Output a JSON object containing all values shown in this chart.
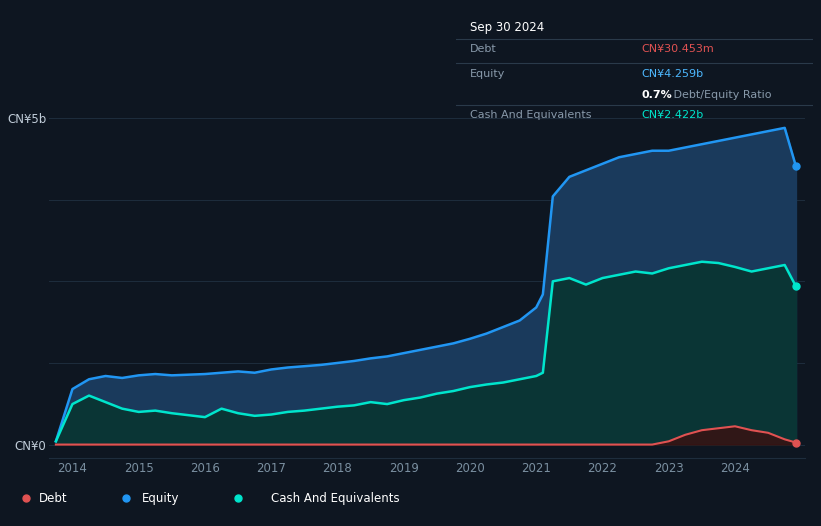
{
  "bg_color": "#0e1621",
  "plot_bg_color": "#0e1621",
  "grid_color": "#1e2d3d",
  "title_box_bg": "#060a0f",
  "title_date": "Sep 30 2024",
  "tooltip_debt_label": "Debt",
  "tooltip_debt_value": "CN¥30.453m",
  "tooltip_debt_color": "#e05252",
  "tooltip_equity_label": "Equity",
  "tooltip_equity_value": "CN¥4.259b",
  "tooltip_equity_color": "#4db8ff",
  "tooltip_ratio": "0.7%",
  "tooltip_ratio_label": " Debt/Equity Ratio",
  "tooltip_cash_label": "Cash And Equivalents",
  "tooltip_cash_value": "CN¥2.422b",
  "tooltip_cash_color": "#00e5cc",
  "ylabel_top": "CN¥5b",
  "ylabel_bottom": "CN¥0",
  "equity_color": "#2196f3",
  "equity_fill_color": "#1a3a5c",
  "cash_color": "#00e5cc",
  "cash_fill_color": "#0a3535",
  "debt_color": "#e05252",
  "debt_fill_color": "#3a1010",
  "legend_debt_label": "Debt",
  "legend_equity_label": "Equity",
  "legend_cash_label": "Cash And Equivalents",
  "xlim_start": 2013.65,
  "xlim_end": 2025.05,
  "ylim_bottom": -0.2,
  "ylim_top": 5.6,
  "years": [
    2013.75,
    2014.0,
    2014.25,
    2014.5,
    2014.75,
    2015.0,
    2015.25,
    2015.5,
    2015.75,
    2016.0,
    2016.25,
    2016.5,
    2016.75,
    2017.0,
    2017.25,
    2017.5,
    2017.75,
    2018.0,
    2018.25,
    2018.5,
    2018.75,
    2019.0,
    2019.25,
    2019.5,
    2019.75,
    2020.0,
    2020.25,
    2020.5,
    2020.75,
    2021.0,
    2021.1,
    2021.25,
    2021.5,
    2021.75,
    2022.0,
    2022.25,
    2022.5,
    2022.75,
    2023.0,
    2023.25,
    2023.5,
    2023.75,
    2024.0,
    2024.25,
    2024.5,
    2024.75,
    2024.92
  ],
  "equity_values": [
    0.05,
    0.85,
    1.0,
    1.05,
    1.02,
    1.06,
    1.08,
    1.06,
    1.07,
    1.08,
    1.1,
    1.12,
    1.1,
    1.15,
    1.18,
    1.2,
    1.22,
    1.25,
    1.28,
    1.32,
    1.35,
    1.4,
    1.45,
    1.5,
    1.55,
    1.62,
    1.7,
    1.8,
    1.9,
    2.1,
    2.3,
    3.8,
    4.1,
    4.2,
    4.3,
    4.4,
    4.45,
    4.5,
    4.5,
    4.55,
    4.6,
    4.65,
    4.7,
    4.75,
    4.8,
    4.85,
    4.259
  ],
  "cash_values": [
    0.05,
    0.62,
    0.75,
    0.65,
    0.55,
    0.5,
    0.52,
    0.48,
    0.45,
    0.42,
    0.55,
    0.48,
    0.44,
    0.46,
    0.5,
    0.52,
    0.55,
    0.58,
    0.6,
    0.65,
    0.62,
    0.68,
    0.72,
    0.78,
    0.82,
    0.88,
    0.92,
    0.95,
    1.0,
    1.05,
    1.1,
    2.5,
    2.55,
    2.45,
    2.55,
    2.6,
    2.65,
    2.62,
    2.7,
    2.75,
    2.8,
    2.78,
    2.72,
    2.65,
    2.7,
    2.75,
    2.422
  ],
  "debt_values": [
    0.0,
    0.0,
    0.0,
    0.0,
    0.0,
    0.0,
    0.0,
    0.0,
    0.0,
    0.0,
    0.0,
    0.0,
    0.0,
    0.0,
    0.0,
    0.0,
    0.0,
    0.0,
    0.0,
    0.0,
    0.0,
    0.0,
    0.0,
    0.0,
    0.0,
    0.0,
    0.0,
    0.0,
    0.0,
    0.0,
    0.0,
    0.0,
    0.0,
    0.0,
    0.0,
    0.0,
    0.0,
    0.0,
    0.05,
    0.15,
    0.22,
    0.25,
    0.28,
    0.22,
    0.18,
    0.08,
    0.0305
  ],
  "xtick_positions": [
    2014,
    2015,
    2016,
    2017,
    2018,
    2019,
    2020,
    2021,
    2022,
    2023,
    2024
  ],
  "xtick_labels": [
    "2014",
    "2015",
    "2016",
    "2017",
    "2018",
    "2019",
    "2020",
    "2021",
    "2022",
    "2023",
    "2024"
  ],
  "grid_y_positions": [
    0,
    1.25,
    2.5,
    3.75,
    5.0
  ]
}
